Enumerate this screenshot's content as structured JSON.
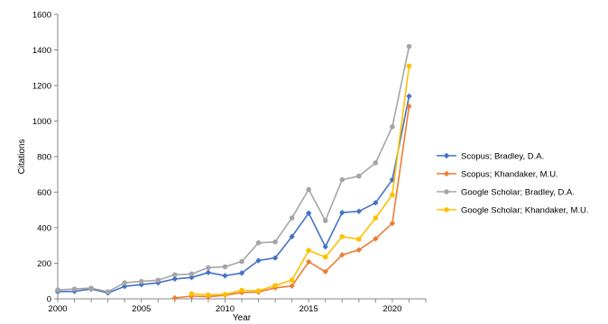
{
  "chart_data": {
    "type": "line",
    "xlabel": "Year",
    "ylabel": "Citations",
    "xlim": [
      2000,
      2022
    ],
    "ylim": [
      0,
      1600
    ],
    "x_ticks": [
      2000,
      2005,
      2010,
      2015,
      2020
    ],
    "y_ticks": [
      0,
      200,
      400,
      600,
      800,
      1000,
      1200,
      1400,
      1600
    ],
    "grid": false,
    "legend_position": "right",
    "series": [
      {
        "name": "Scopus; Bradley, D.A.",
        "color": "#4472C4",
        "marker": "diamond",
        "points": [
          [
            2000,
            40
          ],
          [
            2001,
            42
          ],
          [
            2002,
            55
          ],
          [
            2003,
            33
          ],
          [
            2004,
            70
          ],
          [
            2005,
            80
          ],
          [
            2006,
            90
          ],
          [
            2007,
            112
          ],
          [
            2008,
            120
          ],
          [
            2009,
            148
          ],
          [
            2010,
            130
          ],
          [
            2011,
            145
          ],
          [
            2012,
            215
          ],
          [
            2013,
            230
          ],
          [
            2014,
            350
          ],
          [
            2015,
            482
          ],
          [
            2016,
            293
          ],
          [
            2017,
            485
          ],
          [
            2018,
            492
          ],
          [
            2019,
            540
          ],
          [
            2020,
            670
          ],
          [
            2021,
            1140
          ]
        ]
      },
      {
        "name": "Scopus; Khandaker, M.U.",
        "color": "#ED7D31",
        "marker": "diamond",
        "points": [
          [
            2007,
            5
          ],
          [
            2008,
            15
          ],
          [
            2009,
            12
          ],
          [
            2010,
            20
          ],
          [
            2011,
            35
          ],
          [
            2012,
            38
          ],
          [
            2013,
            62
          ],
          [
            2014,
            72
          ],
          [
            2015,
            208
          ],
          [
            2016,
            153
          ],
          [
            2017,
            247
          ],
          [
            2018,
            275
          ],
          [
            2019,
            338
          ],
          [
            2020,
            425
          ],
          [
            2021,
            1083
          ]
        ]
      },
      {
        "name": "Google Scholar; Bradley, D.A.",
        "color": "#A5A5A5",
        "marker": "circle",
        "points": [
          [
            2000,
            50
          ],
          [
            2001,
            55
          ],
          [
            2002,
            60
          ],
          [
            2003,
            40
          ],
          [
            2004,
            90
          ],
          [
            2005,
            98
          ],
          [
            2006,
            105
          ],
          [
            2007,
            135
          ],
          [
            2008,
            140
          ],
          [
            2009,
            175
          ],
          [
            2010,
            180
          ],
          [
            2011,
            210
          ],
          [
            2012,
            315
          ],
          [
            2013,
            320
          ],
          [
            2014,
            455
          ],
          [
            2015,
            615
          ],
          [
            2016,
            440
          ],
          [
            2017,
            670
          ],
          [
            2018,
            690
          ],
          [
            2019,
            765
          ],
          [
            2020,
            968
          ],
          [
            2021,
            1420
          ]
        ]
      },
      {
        "name": "Google Scholar; Khandaker, M.U.",
        "color": "#FFC000",
        "marker": "circle",
        "points": [
          [
            2008,
            28
          ],
          [
            2009,
            22
          ],
          [
            2010,
            25
          ],
          [
            2011,
            48
          ],
          [
            2012,
            45
          ],
          [
            2013,
            75
          ],
          [
            2014,
            105
          ],
          [
            2015,
            272
          ],
          [
            2016,
            235
          ],
          [
            2017,
            350
          ],
          [
            2018,
            335
          ],
          [
            2019,
            455
          ],
          [
            2020,
            585
          ],
          [
            2021,
            1310
          ]
        ]
      }
    ]
  }
}
